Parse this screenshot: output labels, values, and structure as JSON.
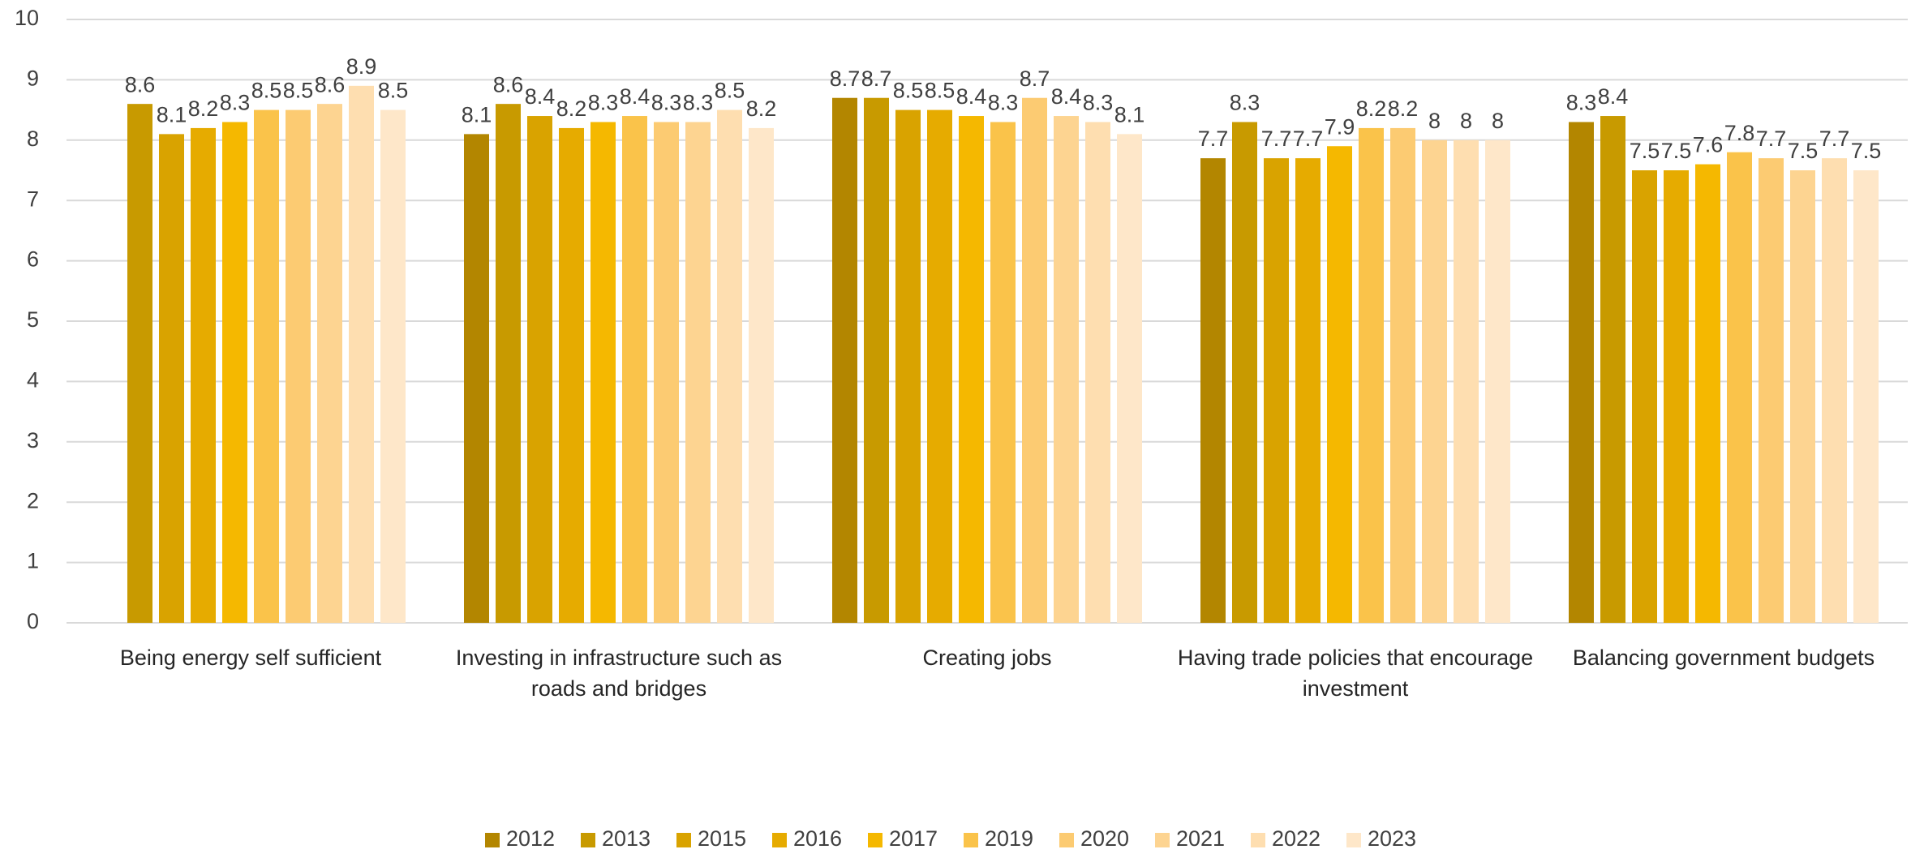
{
  "chart_data": {
    "type": "bar",
    "categories": [
      "Being energy self sufficient",
      "Investing in infrastructure such as roads and bridges",
      "Creating jobs",
      "Having trade policies that encourage investment",
      "Balancing government budgets"
    ],
    "series": [
      {
        "name": "2012",
        "color": "#b38600",
        "values": [
          null,
          8.1,
          8.7,
          7.7,
          8.3
        ]
      },
      {
        "name": "2013",
        "color": "#c89a00",
        "values": [
          8.6,
          8.6,
          8.7,
          8.3,
          8.4
        ]
      },
      {
        "name": "2015",
        "color": "#d9a300",
        "values": [
          8.1,
          8.4,
          8.5,
          7.7,
          7.5
        ]
      },
      {
        "name": "2016",
        "color": "#e6ab00",
        "values": [
          8.2,
          8.2,
          8.5,
          7.7,
          7.5
        ]
      },
      {
        "name": "2017",
        "color": "#f5b800",
        "values": [
          8.3,
          8.3,
          8.4,
          7.9,
          7.6
        ]
      },
      {
        "name": "2019",
        "color": "#fac34a",
        "values": [
          8.5,
          8.4,
          8.3,
          8.2,
          7.8
        ]
      },
      {
        "name": "2020",
        "color": "#fccb72",
        "values": [
          8.5,
          8.3,
          8.7,
          8.2,
          7.7
        ]
      },
      {
        "name": "2021",
        "color": "#fdd491",
        "values": [
          8.6,
          8.3,
          8.4,
          8,
          7.5
        ]
      },
      {
        "name": "2022",
        "color": "#fedeb0",
        "values": [
          8.9,
          8.5,
          8.3,
          8,
          7.7
        ]
      },
      {
        "name": "2023",
        "color": "#fee7c9",
        "values": [
          8.5,
          8.2,
          8.1,
          8,
          7.5
        ]
      }
    ],
    "ylim": [
      0,
      10
    ],
    "yticks": [
      0,
      1,
      2,
      3,
      4,
      5,
      6,
      7,
      8,
      9,
      10
    ],
    "grid": true,
    "legend": "bottom"
  }
}
